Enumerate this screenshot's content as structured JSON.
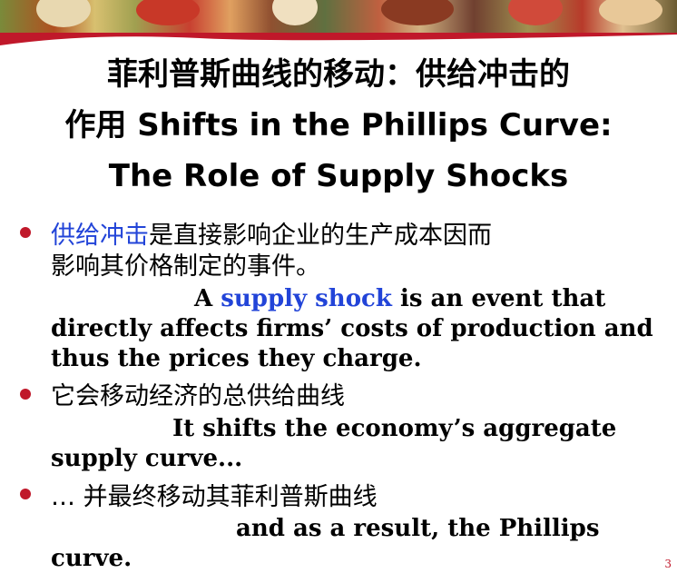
{
  "title": {
    "line1": "菲利普斯曲线的移动：供给冲击的",
    "line2": "作用 Shifts in the Phillips Curve:",
    "line3": "The Role of Supply Shocks"
  },
  "bullets": [
    {
      "zh_highlight": "供给冲击",
      "zh_line1_rest": "是直接影响企业的生产成本因而",
      "zh_line2": "影响其价格制定的事件。",
      "en_line1_pre": "A ",
      "en_line1_highlight": "supply shock",
      "en_line1_post": " is an event that",
      "en_line2": "directly affects firms’ costs of production and",
      "en_line3": "thus the prices they charge."
    },
    {
      "zh_line1": "它会移动经济的总供给曲线",
      "en_line1": "It shifts the economy’s aggregate",
      "en_line2": "supply curve..."
    },
    {
      "zh_line1": "… 并最终移动其菲利普斯曲线",
      "en_line1": "and as a result, the Phillips",
      "en_line2": "curve."
    }
  ],
  "page_number": "3",
  "colors": {
    "accent_red": "#c0182a",
    "highlight_blue": "#2244d8"
  }
}
